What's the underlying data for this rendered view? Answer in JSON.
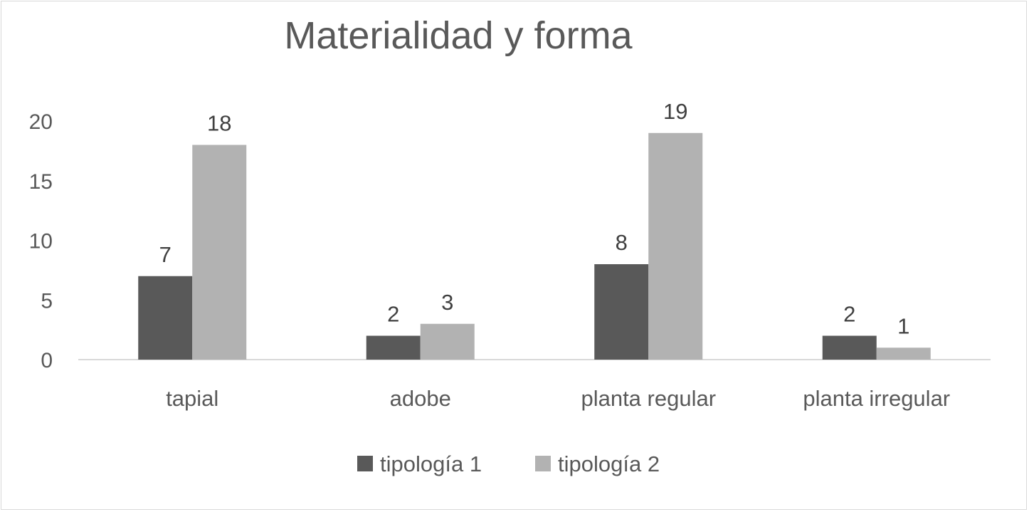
{
  "chart_data": {
    "type": "bar",
    "title": "Materialidad y forma",
    "xlabel": "",
    "ylabel": "",
    "categories": [
      "tapial",
      "adobe",
      "planta regular",
      "planta irregular"
    ],
    "series": [
      {
        "name": "tipología 1",
        "values": [
          7,
          2,
          8,
          2
        ],
        "color": "#595959"
      },
      {
        "name": "tipología 2",
        "values": [
          18,
          3,
          19,
          1
        ],
        "color": "#b2b2b2"
      }
    ],
    "ylim": [
      0,
      20
    ],
    "yticks": [
      0,
      5,
      10,
      15,
      20
    ],
    "grid": false,
    "legend": "bottom",
    "data_labels": true
  }
}
